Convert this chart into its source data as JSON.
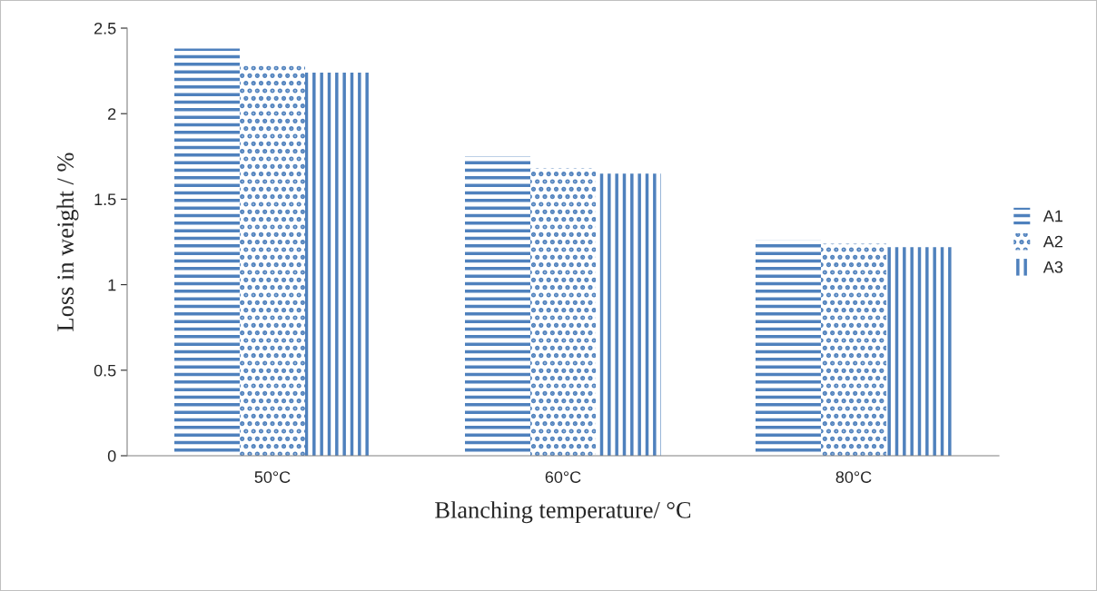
{
  "chart_data": {
    "type": "bar",
    "xlabel": "Blanching temperature/ °C",
    "ylabel": "Loss in weight / %",
    "categories": [
      "50°C",
      "60°C",
      "80°C"
    ],
    "series": [
      {
        "name": "A1",
        "color": "#4f81bd",
        "values": [
          2.38,
          1.75,
          1.26
        ]
      },
      {
        "name": "A2",
        "color": "#4f81bd",
        "values": [
          2.28,
          1.68,
          1.24
        ]
      },
      {
        "name": "A3",
        "color": "#4f81bd",
        "values": [
          2.24,
          1.65,
          1.22
        ]
      }
    ],
    "ylim": [
      0,
      2.5
    ],
    "yticks": [
      0,
      0.5,
      1,
      1.5,
      2,
      2.5
    ],
    "grid": false,
    "legend": "right"
  }
}
